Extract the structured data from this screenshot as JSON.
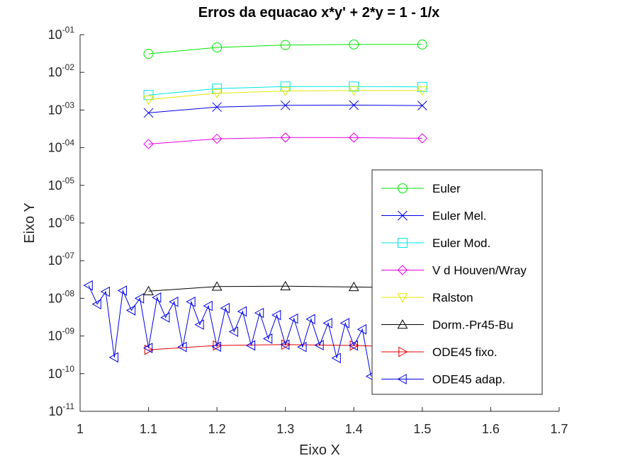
{
  "chart_data": {
    "type": "line",
    "title": "Erros da equacao x*y' + 2*y = 1 - 1/x",
    "xlabel": "Eixo X",
    "ylabel": "Eixo Y",
    "xlim": [
      1,
      1.7
    ],
    "ylim": [
      1e-11,
      0.1
    ],
    "yscale": "log",
    "x_ticks": [
      "1",
      "1.1",
      "1.2",
      "1.3",
      "1.4",
      "1.5",
      "1.6",
      "1.7"
    ],
    "y_ticks": [
      {
        "base": "10",
        "exp": "-11"
      },
      {
        "base": "10",
        "exp": "-10"
      },
      {
        "base": "10",
        "exp": "-09"
      },
      {
        "base": "10",
        "exp": "-08"
      },
      {
        "base": "10",
        "exp": "-07"
      },
      {
        "base": "10",
        "exp": "-06"
      },
      {
        "base": "10",
        "exp": "-05"
      },
      {
        "base": "10",
        "exp": "-04"
      },
      {
        "base": "10",
        "exp": "-03"
      },
      {
        "base": "10",
        "exp": "-02"
      },
      {
        "base": "10",
        "exp": "-01"
      }
    ],
    "legend_placement": "right",
    "series": [
      {
        "name": "Euler",
        "color": "#00e600",
        "marker": "circle",
        "x": [
          1.1,
          1.2,
          1.3,
          1.4,
          1.5
        ],
        "y": [
          0.031,
          0.046,
          0.053,
          0.055,
          0.055
        ]
      },
      {
        "name": "Euler Mel.",
        "color": "#0000e6",
        "marker": "cross",
        "x": [
          1.1,
          1.2,
          1.3,
          1.4,
          1.5
        ],
        "y": [
          0.00084,
          0.0012,
          0.00133,
          0.00135,
          0.00131
        ]
      },
      {
        "name": "Euler Mod.",
        "color": "#00e6e6",
        "marker": "square",
        "x": [
          1.1,
          1.2,
          1.3,
          1.4,
          1.5
        ],
        "y": [
          0.0025,
          0.0037,
          0.0042,
          0.0042,
          0.0041
        ]
      },
      {
        "name": "V d Houven/Wray",
        "color": "#e600e6",
        "marker": "diamond",
        "x": [
          1.1,
          1.2,
          1.3,
          1.4,
          1.5
        ],
        "y": [
          0.000125,
          0.000172,
          0.000186,
          0.000185,
          0.000177
        ]
      },
      {
        "name": "Ralston",
        "color": "#e6e600",
        "marker": "triangle-down",
        "x": [
          1.1,
          1.2,
          1.3,
          1.4,
          1.5
        ],
        "y": [
          0.0019,
          0.0028,
          0.0032,
          0.0033,
          0.0033
        ]
      },
      {
        "name": "Dorm.-Pr45-Bu",
        "color": "#000000",
        "marker": "triangle-up",
        "x": [
          1.1,
          1.2,
          1.3,
          1.4,
          1.5
        ],
        "y": [
          1.55e-08,
          2.05e-08,
          2.1e-08,
          2e-08,
          1.9e-08
        ]
      },
      {
        "name": "ODE45 fixo.",
        "color": "#e60000",
        "marker": "triangle-right",
        "x": [
          1.1,
          1.2,
          1.3,
          1.4,
          1.5
        ],
        "y": [
          4.3e-10,
          5.6e-10,
          5.9e-10,
          5.6e-10,
          5e-10
        ]
      },
      {
        "name": "ODE45 adap.",
        "color": "#0000e6",
        "marker": "triangle-left",
        "x": [
          1.0125,
          1.025,
          1.0375,
          1.05,
          1.0625,
          1.075,
          1.0875,
          1.1,
          1.1125,
          1.125,
          1.1375,
          1.15,
          1.1625,
          1.175,
          1.1875,
          1.2,
          1.2125,
          1.225,
          1.2375,
          1.25,
          1.2625,
          1.275,
          1.2875,
          1.3,
          1.3125,
          1.325,
          1.3375,
          1.35,
          1.3625,
          1.375,
          1.3875,
          1.4,
          1.4125,
          1.425
        ],
        "y": [
          2.2e-08,
          7e-09,
          1.5e-08,
          2.7e-10,
          1.6e-08,
          4.8e-09,
          1e-08,
          4.8e-10,
          1.05e-08,
          3.1e-09,
          8.1e-09,
          5.1e-10,
          8.1e-09,
          2e-09,
          6.3e-09,
          5.2e-10,
          5.5e-09,
          1.3e-09,
          4.5e-09,
          5.6e-10,
          4.1e-09,
          8.5e-10,
          3.6e-09,
          5.9e-10,
          2.9e-09,
          5.1e-10,
          2.8e-09,
          5.7e-10,
          2.2e-09,
          2.6e-10,
          2.2e-09,
          5.6e-10,
          1.5e-09,
          8.5e-11
        ]
      }
    ]
  }
}
